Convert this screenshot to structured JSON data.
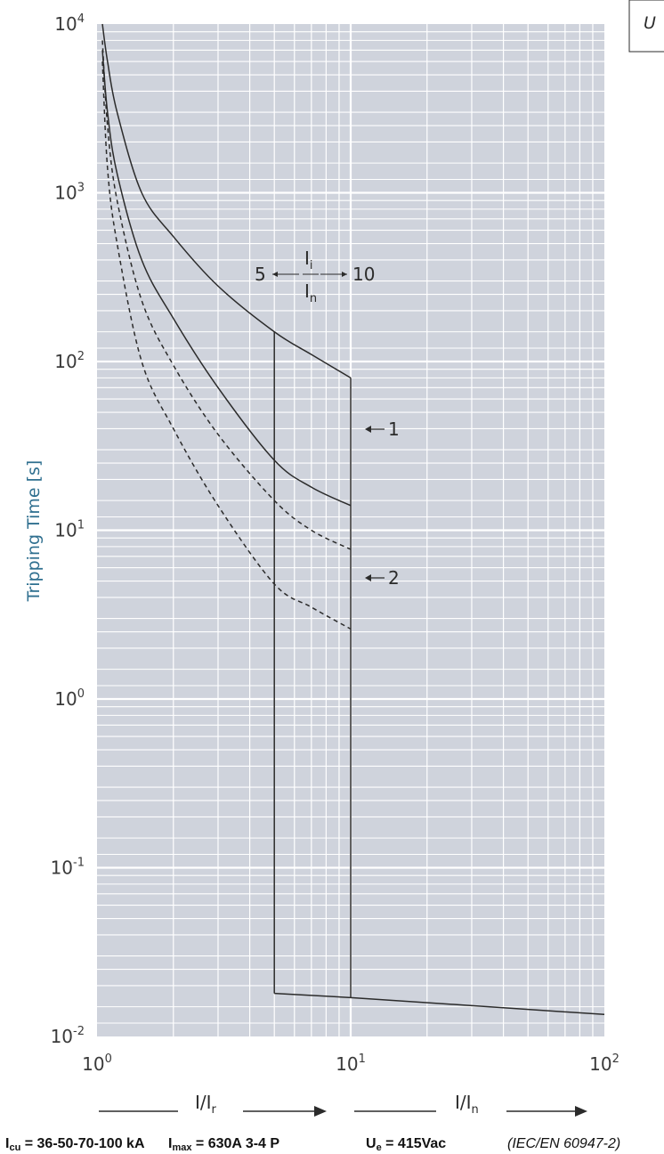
{
  "chart_data": {
    "type": "line",
    "xscale": "log",
    "yscale": "log",
    "xlim": [
      1,
      100
    ],
    "ylim": [
      0.01,
      10000
    ],
    "grid": true,
    "ylabel": "Tripping Time [s]",
    "x_ticks": [
      {
        "base": "10",
        "exp": "0"
      },
      {
        "base": "10",
        "exp": "1"
      },
      {
        "base": "10",
        "exp": "2"
      }
    ],
    "y_ticks": [
      {
        "base": "10",
        "exp": "4"
      },
      {
        "base": "10",
        "exp": "3"
      },
      {
        "base": "10",
        "exp": "2"
      },
      {
        "base": "10",
        "exp": "1"
      },
      {
        "base": "10",
        "exp": "0"
      },
      {
        "base": "10",
        "exp": "-1"
      },
      {
        "base": "10",
        "exp": "-2"
      }
    ],
    "series": [
      {
        "style": "solid",
        "x": [
          1.05,
          1.1,
          1.2,
          1.5,
          2,
          3,
          5,
          7,
          10
        ],
        "y": [
          10000,
          6000,
          3000,
          1000,
          550,
          280,
          150,
          110,
          80
        ]
      },
      {
        "style": "solid",
        "x": [
          1.05,
          1.1,
          1.2,
          1.5,
          2,
          3,
          5,
          7,
          10
        ],
        "y": [
          7000,
          3000,
          1300,
          400,
          180,
          70,
          26,
          18,
          14
        ]
      },
      {
        "style": "dashed",
        "x": [
          1.05,
          1.1,
          1.2,
          1.5,
          2,
          3,
          5,
          7,
          10
        ],
        "y": [
          8000,
          2500,
          900,
          230,
          95,
          37,
          15,
          10,
          7.7
        ]
      },
      {
        "style": "dashed",
        "x": [
          1.05,
          1.1,
          1.2,
          1.5,
          2,
          3,
          5,
          7,
          10
        ],
        "y": [
          6000,
          1400,
          500,
          100,
          40,
          14,
          4.8,
          3.5,
          2.6
        ]
      },
      {
        "style": "solid",
        "x": [
          5,
          5
        ],
        "y": [
          150,
          0.018
        ]
      },
      {
        "style": "solid",
        "x": [
          10,
          10
        ],
        "y": [
          80,
          0.017
        ]
      },
      {
        "style": "solid",
        "x": [
          5,
          10,
          100
        ],
        "y": [
          0.018,
          0.017,
          0.0135
        ]
      }
    ],
    "annotations": {
      "ratio_left": "5",
      "ratio_right": "10",
      "ratio_num_base": "I",
      "ratio_num_sub": "i",
      "ratio_den_base": "I",
      "ratio_den_sub": "n",
      "curve_1_label": "1",
      "curve_2_label": "2",
      "axis_left_base": "I/I",
      "axis_left_sub": "r",
      "axis_right_base": "I/I",
      "axis_right_sub": "n",
      "corner_box_text": "U"
    }
  },
  "footer": {
    "icu_base": "I",
    "icu_sub": "cu",
    "icu_value": " = 36-50-70-100 kA",
    "imax_base": "I",
    "imax_sub": "max",
    "imax_value": " = 630A   3-4 P",
    "ue_base": "U",
    "ue_sub": "e",
    "ue_value": " = 415Vac",
    "standard": "(IEC/EN 60947-2)"
  },
  "colors": {
    "plot_bg": "#cfd3dc",
    "grid": "#ffffff",
    "curve": "#2b2b2b",
    "ylabel": "#2f6f8f"
  }
}
